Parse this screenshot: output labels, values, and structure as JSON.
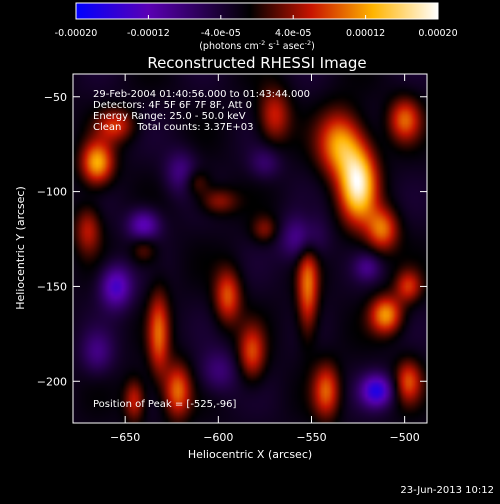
{
  "colorbar": {
    "ticks": [
      "-0.00020",
      "-0.00012",
      "-4.0e-05",
      "4.0e-05",
      "0.00012",
      "0.00020"
    ],
    "tick_values": [
      -0.0002,
      -0.00012,
      -4e-05,
      4e-05,
      0.00012,
      0.0002
    ],
    "range": [
      -0.0002,
      0.0002
    ],
    "unit_text": "(photons cm",
    "unit_sup1": "-2",
    "unit_mid": " s",
    "unit_sup2": "-1",
    "unit_end": " asec",
    "unit_sup3": "-2",
    "unit_close": ")",
    "colors": [
      "#0000ff",
      "#5a00b4",
      "#000000",
      "#c81400",
      "#ffb400",
      "#ffffff"
    ]
  },
  "chart_data": {
    "type": "heatmap",
    "title": "Reconstructed RHESSI Image",
    "xlabel": "Heliocentric X (arcsec)",
    "ylabel": "Heliocentric Y (arcsec)",
    "xlim": [
      -678,
      -488
    ],
    "ylim": [
      -222,
      -38
    ],
    "x_ticks": [
      -650,
      -600,
      -550,
      -500
    ],
    "y_ticks": [
      -50,
      -100,
      -150,
      -200
    ],
    "x_tick_labels": [
      "−650",
      "−600",
      "−550",
      "−500"
    ],
    "y_tick_labels": [
      "−50",
      "−100",
      "−150",
      "−200"
    ],
    "annotations": [
      "29-Feb-2004 01:40:56.000 to 01:43:44.000",
      "Detectors: 4F 5F 6F 7F 8F, Att 0",
      "Energy Range: 25.0 - 50.0 keV",
      "Clean     Total counts: 3.37E+03"
    ],
    "peak_label": "Position of Peak = [-525,-96]",
    "peak": [
      -525,
      -96
    ],
    "blobs": [
      {
        "x": -525,
        "y": -96,
        "sx": 7,
        "sy": 14,
        "a": 1.0
      },
      {
        "x": -535,
        "y": -75,
        "sx": 8,
        "sy": 12,
        "a": 0.7
      },
      {
        "x": -512,
        "y": -120,
        "sx": 6,
        "sy": 8,
        "a": 0.6
      },
      {
        "x": -665,
        "y": -85,
        "sx": 6,
        "sy": 8,
        "a": 0.75
      },
      {
        "x": -655,
        "y": -65,
        "sx": 7,
        "sy": 6,
        "a": 0.45
      },
      {
        "x": -670,
        "y": -120,
        "sx": 5,
        "sy": 9,
        "a": 0.4
      },
      {
        "x": -632,
        "y": -175,
        "sx": 4,
        "sy": 16,
        "a": 0.55
      },
      {
        "x": -622,
        "y": -205,
        "sx": 5,
        "sy": 10,
        "a": 0.6
      },
      {
        "x": -645,
        "y": -210,
        "sx": 4,
        "sy": 8,
        "a": 0.45
      },
      {
        "x": -595,
        "y": -155,
        "sx": 5,
        "sy": 10,
        "a": 0.55
      },
      {
        "x": -582,
        "y": -185,
        "sx": 5,
        "sy": 10,
        "a": 0.5
      },
      {
        "x": -552,
        "y": -150,
        "sx": 4,
        "sy": 18,
        "a": 0.6
      },
      {
        "x": -542,
        "y": -205,
        "sx": 5,
        "sy": 10,
        "a": 0.55
      },
      {
        "x": -570,
        "y": -60,
        "sx": 6,
        "sy": 10,
        "a": 0.45
      },
      {
        "x": -500,
        "y": -62,
        "sx": 6,
        "sy": 8,
        "a": 0.55
      },
      {
        "x": -498,
        "y": -150,
        "sx": 5,
        "sy": 6,
        "a": 0.45
      },
      {
        "x": -510,
        "y": -165,
        "sx": 6,
        "sy": 7,
        "a": 0.7
      },
      {
        "x": -498,
        "y": -200,
        "sx": 5,
        "sy": 8,
        "a": 0.5
      },
      {
        "x": -600,
        "y": -105,
        "sx": 7,
        "sy": 5,
        "a": 0.35
      },
      {
        "x": -612,
        "y": -95,
        "sx": 5,
        "sy": 5,
        "a": 0.3
      },
      {
        "x": -575,
        "y": -120,
        "sx": 5,
        "sy": 5,
        "a": 0.3
      },
      {
        "x": -640,
        "y": -130,
        "sx": 5,
        "sy": 6,
        "a": 0.3
      },
      {
        "x": -655,
        "y": -150,
        "sx": 6,
        "sy": 8,
        "a": -0.6
      },
      {
        "x": -640,
        "y": -118,
        "sx": 6,
        "sy": 6,
        "a": -0.55
      },
      {
        "x": -620,
        "y": -90,
        "sx": 6,
        "sy": 8,
        "a": -0.35
      },
      {
        "x": -555,
        "y": -125,
        "sx": 8,
        "sy": 8,
        "a": -0.45
      },
      {
        "x": -515,
        "y": -205,
        "sx": 6,
        "sy": 6,
        "a": -0.7
      },
      {
        "x": -600,
        "y": -195,
        "sx": 7,
        "sy": 8,
        "a": -0.3
      },
      {
        "x": -665,
        "y": -185,
        "sx": 6,
        "sy": 8,
        "a": -0.3
      },
      {
        "x": -575,
        "y": -85,
        "sx": 6,
        "sy": 6,
        "a": -0.25
      },
      {
        "x": -520,
        "y": -140,
        "sx": 5,
        "sy": 5,
        "a": -0.3
      }
    ]
  },
  "footer": {
    "date": "23-Jun-2013 10:12"
  }
}
